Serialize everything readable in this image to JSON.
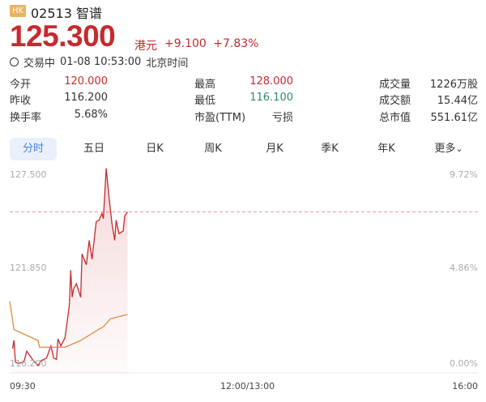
{
  "header": {
    "market_badge": "HK",
    "code": "02513",
    "name": "智谱",
    "price": "125.300",
    "currency": "港元",
    "change": "+9.100",
    "change_pct": "+7.83%",
    "status": "交易中",
    "datetime": "01-08 10:53:00",
    "timezone": "北京时间"
  },
  "stats": [
    [
      {
        "label": "今开",
        "value": "120.000",
        "color": "red"
      },
      {
        "label": "最高",
        "value": "128.000",
        "color": "red"
      },
      {
        "label": "成交量",
        "value": "1226万股"
      }
    ],
    [
      {
        "label": "昨收",
        "value": "116.200"
      },
      {
        "label": "最低",
        "value": "116.100",
        "color": "green"
      },
      {
        "label": "成交额",
        "value": "15.44亿"
      }
    ],
    [
      {
        "label": "换手率",
        "value": "5.68%"
      },
      {
        "label": "市盈(TTM)",
        "value": "亏损"
      },
      {
        "label": "总市值",
        "value": "551.61亿"
      }
    ]
  ],
  "tabs": [
    {
      "label": "分时",
      "active": true
    },
    {
      "label": "五日"
    },
    {
      "label": "日K"
    },
    {
      "label": "周K"
    },
    {
      "label": "月K"
    },
    {
      "label": "季K"
    },
    {
      "label": "年K"
    },
    {
      "label": "更多"
    }
  ],
  "colors": {
    "up": "#c62a2f",
    "down": "#2e8b6a",
    "avg": "#e08a3c",
    "accent": "#4a7fd6"
  },
  "chart_data": {
    "type": "line",
    "y_ticks": [
      "127.500",
      "121.850",
      "116.200"
    ],
    "pct_ticks": [
      "9.72%",
      "4.86%",
      "0.00%"
    ],
    "x_ticks": [
      "09:30",
      "12:00/13:00",
      "16:00"
    ],
    "ylim": [
      116.2,
      127.5
    ],
    "reference_price": 125.3,
    "series": [
      {
        "kind": "price",
        "points": [
          [
            "09:32",
            117.12
          ],
          [
            "09:33",
            117.61
          ],
          [
            "09:34",
            116.31
          ],
          [
            "09:36",
            116.23
          ],
          [
            "09:40",
            116.31
          ],
          [
            "09:42",
            116.96
          ],
          [
            "09:46",
            116.47
          ],
          [
            "09:50",
            116.1
          ],
          [
            "09:52",
            116.39
          ],
          [
            "09:56",
            116.55
          ],
          [
            "09:59",
            117.28
          ],
          [
            "10:01",
            116.55
          ],
          [
            "10:03",
            116.47
          ],
          [
            "10:04",
            117.69
          ],
          [
            "10:06",
            117.28
          ],
          [
            "10:09",
            117.77
          ],
          [
            "10:12",
            119.71
          ],
          [
            "10:13",
            121.81
          ],
          [
            "10:14",
            120.19
          ],
          [
            "10:15",
            120.68
          ],
          [
            "10:17",
            121.0
          ],
          [
            "10:20",
            120.19
          ],
          [
            "10:21",
            122.78
          ],
          [
            "10:24",
            122.13
          ],
          [
            "10:26",
            123.59
          ],
          [
            "10:28",
            122.46
          ],
          [
            "10:31",
            124.72
          ],
          [
            "10:33",
            124.8
          ],
          [
            "10:35",
            125.21
          ],
          [
            "10:36",
            124.89
          ],
          [
            "10:38",
            127.9
          ],
          [
            "10:40",
            126.18
          ],
          [
            "10:42",
            124.64
          ],
          [
            "10:44",
            123.59
          ],
          [
            "10:45",
            124.8
          ],
          [
            "10:47",
            124.0
          ],
          [
            "10:50",
            124.15
          ],
          [
            "10:51",
            125.04
          ],
          [
            "10:53",
            125.3
          ]
        ]
      },
      {
        "kind": "average",
        "points": [
          [
            "09:30",
            119.95
          ],
          [
            "09:33",
            118.25
          ],
          [
            "09:50",
            117.6
          ],
          [
            "09:51",
            117.2
          ],
          [
            "10:09",
            117.2
          ],
          [
            "10:20",
            117.6
          ],
          [
            "10:36",
            118.43
          ],
          [
            "10:41",
            118.9
          ],
          [
            "10:53",
            119.16
          ]
        ]
      }
    ]
  }
}
